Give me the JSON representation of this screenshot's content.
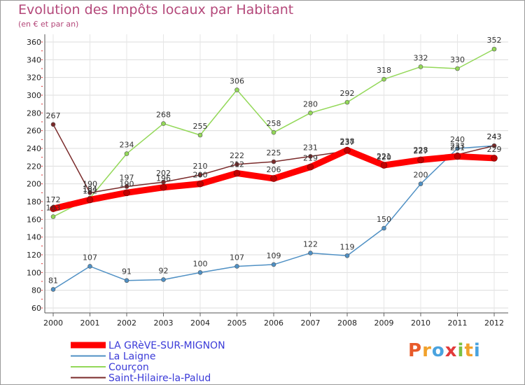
{
  "chart_data": {
    "type": "line",
    "title": "Evolution des Impôts locaux par Habitant",
    "subtitle": "(en € et par an)",
    "categories": [
      "2000",
      "2001",
      "2002",
      "2003",
      "2004",
      "2005",
      "2006",
      "2007",
      "2008",
      "2009",
      "2010",
      "2011",
      "2012"
    ],
    "ylim": [
      60,
      360
    ],
    "yticks": [
      60,
      80,
      100,
      120,
      140,
      160,
      180,
      200,
      220,
      240,
      260,
      280,
      300,
      320,
      340,
      360
    ],
    "grid": true,
    "legend_position": "bottom-left",
    "series": [
      {
        "name": "La Laigne",
        "color": "#4f90c4",
        "values": [
          81,
          107,
          91,
          92,
          100,
          107,
          109,
          122,
          119,
          150,
          200,
          240,
          243
        ]
      },
      {
        "name": "Courçon",
        "color": "#93d858",
        "values": [
          163,
          184,
          234,
          268,
          255,
          306,
          258,
          280,
          292,
          318,
          332,
          330,
          352
        ]
      },
      {
        "name": "Saint-Hilaire-la-Palud",
        "color": "#7a2a2a",
        "values": [
          267,
          190,
          197,
          202,
          210,
          222,
          225,
          231,
          237,
          220,
          228,
          233,
          243
        ]
      },
      {
        "name": "LA GRèVE-SUR-MIGNON",
        "color": "#ff0000",
        "values": [
          172,
          182,
          190,
          196,
          200,
          212,
          206,
          219,
          238,
          221,
          227,
          231,
          229
        ]
      }
    ]
  },
  "logo": {
    "letters": [
      "P",
      "r",
      "o",
      "x",
      "i",
      "t",
      "i"
    ],
    "colors": [
      "#e85a2a",
      "#f1a12b",
      "#4aa3df",
      "#e23a3a",
      "#7ac143",
      "#f1a12b",
      "#4aa3df"
    ]
  }
}
